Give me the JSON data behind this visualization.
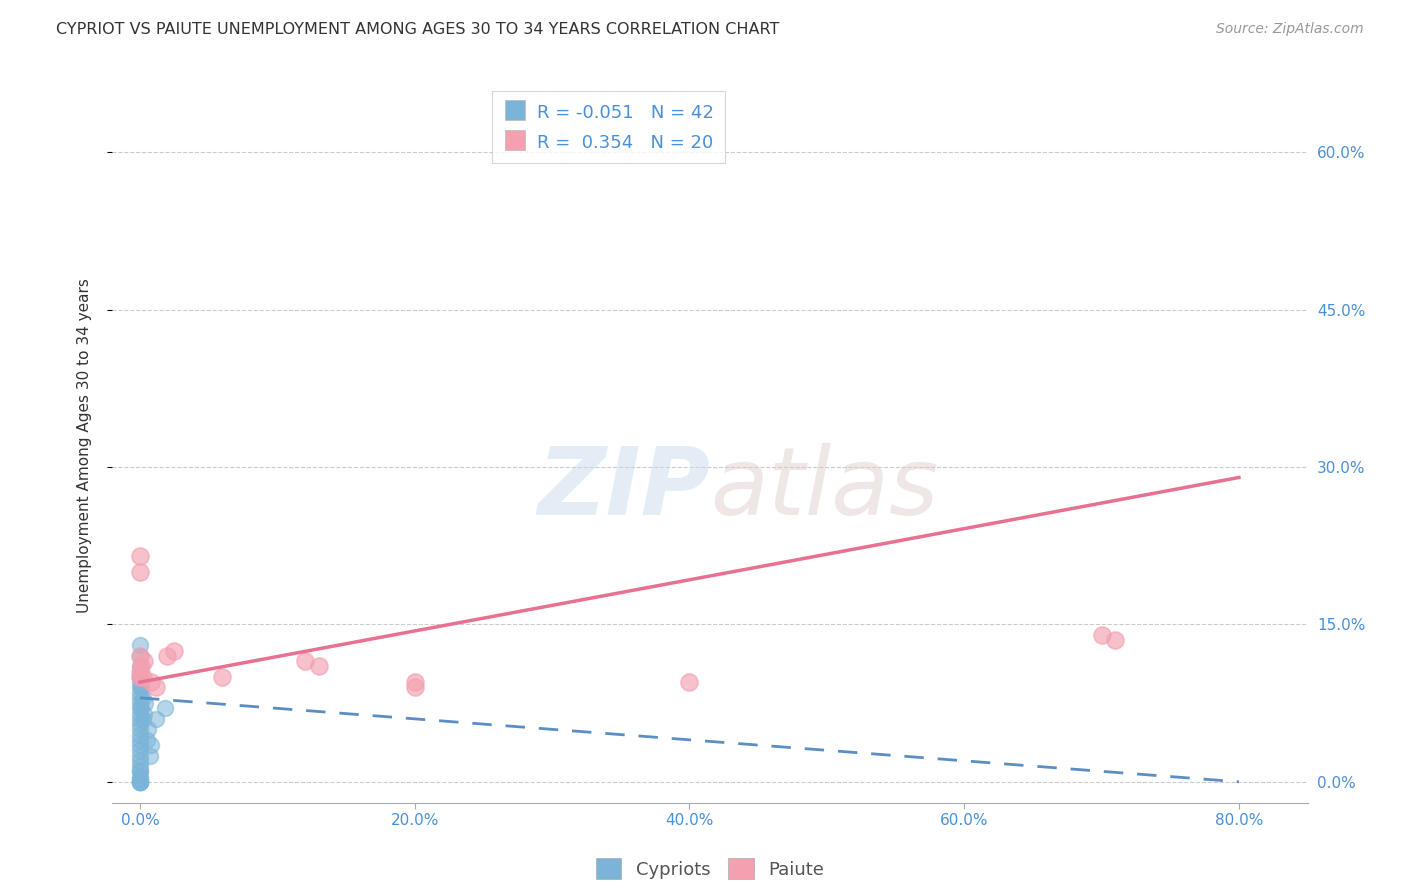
{
  "title": "CYPRIOT VS PAIUTE UNEMPLOYMENT AMONG AGES 30 TO 34 YEARS CORRELATION CHART",
  "source": "Source: ZipAtlas.com",
  "xlabel_ticks": [
    "0.0%",
    "20.0%",
    "40.0%",
    "60.0%",
    "80.0%"
  ],
  "xlabel_tick_vals": [
    0.0,
    0.2,
    0.4,
    0.6,
    0.8
  ],
  "ylabel": "Unemployment Among Ages 30 to 34 years",
  "ylabel_ticks": [
    "0.0%",
    "15.0%",
    "30.0%",
    "45.0%",
    "60.0%"
  ],
  "ylabel_tick_vals": [
    0.0,
    0.15,
    0.3,
    0.45,
    0.6
  ],
  "xlim": [
    -0.02,
    0.85
  ],
  "ylim": [
    -0.02,
    0.66
  ],
  "cypriot_R": "-0.051",
  "cypriot_N": "42",
  "paiute_R": "0.354",
  "paiute_N": "20",
  "cypriot_color": "#7ab4d8",
  "paiute_color": "#f4a0b0",
  "cypriot_line_color": "#5b8ec4",
  "paiute_line_color": "#e87090",
  "background_color": "#ffffff",
  "grid_color": "#cccccc",
  "cypriot_scatter_x": [
    0.0,
    0.0,
    0.0,
    0.0,
    0.0,
    0.0,
    0.0,
    0.0,
    0.0,
    0.0,
    0.0,
    0.0,
    0.0,
    0.0,
    0.0,
    0.0,
    0.0,
    0.0,
    0.0,
    0.0,
    0.0,
    0.0,
    0.0,
    0.0,
    0.0,
    0.0,
    0.0,
    0.0,
    0.0,
    0.0,
    0.001,
    0.001,
    0.002,
    0.002,
    0.003,
    0.004,
    0.005,
    0.006,
    0.007,
    0.008,
    0.012,
    0.018
  ],
  "cypriot_scatter_y": [
    0.0,
    0.0,
    0.0,
    0.0,
    0.0,
    0.01,
    0.01,
    0.02,
    0.025,
    0.03,
    0.04,
    0.05,
    0.055,
    0.06,
    0.065,
    0.07,
    0.075,
    0.08,
    0.085,
    0.09,
    0.095,
    0.1,
    0.11,
    0.12,
    0.13,
    0.035,
    0.045,
    0.015,
    0.005,
    0.003,
    0.07,
    0.09,
    0.06,
    0.08,
    0.065,
    0.075,
    0.04,
    0.05,
    0.025,
    0.035,
    0.06,
    0.07
  ],
  "paiute_scatter_x": [
    0.0,
    0.0,
    0.0,
    0.0,
    0.0,
    0.001,
    0.002,
    0.003,
    0.008,
    0.012,
    0.02,
    0.025,
    0.06,
    0.12,
    0.13,
    0.2,
    0.2,
    0.4,
    0.7,
    0.71
  ],
  "paiute_scatter_y": [
    0.2,
    0.215,
    0.1,
    0.105,
    0.12,
    0.11,
    0.1,
    0.115,
    0.095,
    0.09,
    0.12,
    0.125,
    0.1,
    0.115,
    0.11,
    0.09,
    0.095,
    0.095,
    0.14,
    0.135
  ],
  "cypriot_line_x0": 0.0,
  "cypriot_line_x1": 0.8,
  "cypriot_line_y0": 0.08,
  "cypriot_line_y1": 0.0,
  "paiute_line_x0": 0.0,
  "paiute_line_x1": 0.8,
  "paiute_line_y0": 0.095,
  "paiute_line_y1": 0.29,
  "legend_fontsize": 13,
  "title_fontsize": 11.5,
  "axis_label_fontsize": 11,
  "tick_fontsize": 11,
  "source_fontsize": 10
}
